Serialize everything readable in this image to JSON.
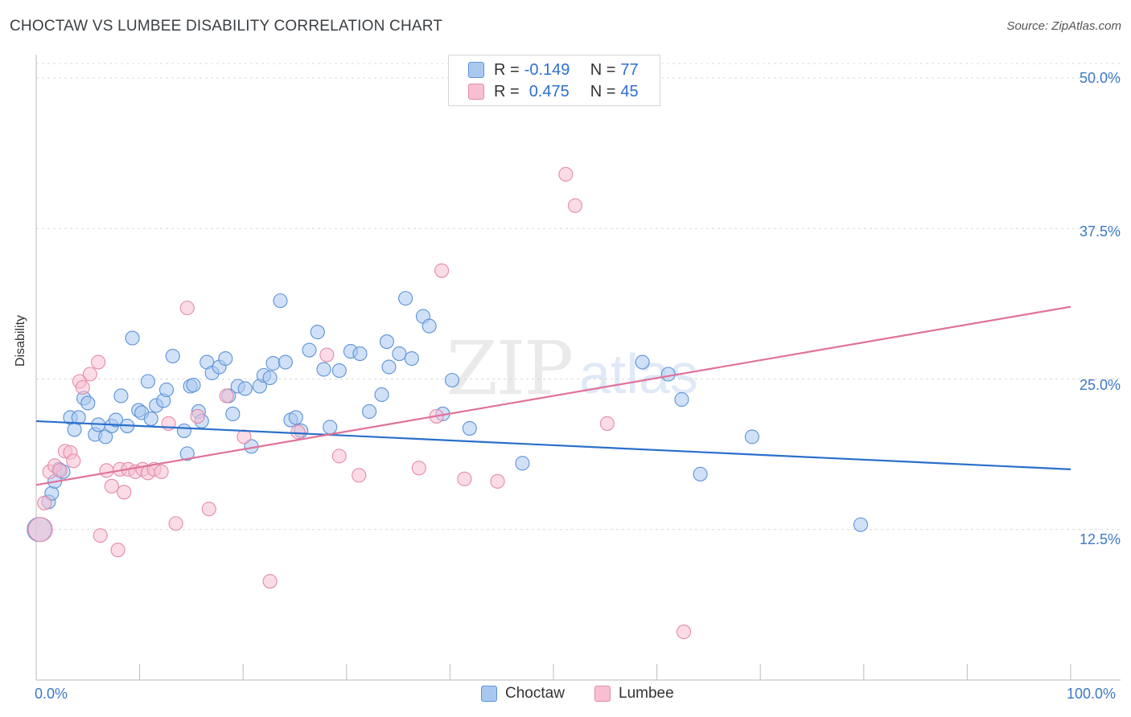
{
  "header": {
    "title": "CHOCTAW VS LUMBEE DISABILITY CORRELATION CHART",
    "source": "Source: ZipAtlas.com"
  },
  "legend": {
    "choctaw": {
      "r_label": "R = ",
      "r_value": "-0.149",
      "n_label": "N = ",
      "n_value": "77"
    },
    "lumbee": {
      "r_label": "R = ",
      "r_value": "0.475",
      "n_label": "N = ",
      "n_value": "45"
    }
  },
  "bottom_legend": {
    "choctaw": "Choctaw",
    "lumbee": "Lumbee"
  },
  "watermark": {
    "zip": "ZIP",
    "atlas": "atlas"
  },
  "colors": {
    "choctaw_fill": "#a9c8f0",
    "choctaw_stroke": "#5b92d8",
    "choctaw_line": "#2a6fcb",
    "lumbee_fill": "#f7bfd2",
    "lumbee_stroke": "#e48aab",
    "lumbee_line": "#e0729a",
    "tick_text": "#3b78c8"
  },
  "chart_data": {
    "type": "scatter",
    "title": "CHOCTAW VS LUMBEE DISABILITY CORRELATION CHART",
    "xlabel": "",
    "ylabel": "Disability",
    "xlim": [
      0,
      100
    ],
    "ylim": [
      0,
      50
    ],
    "x_tick_labels": [
      "0.0%",
      "100.0%"
    ],
    "y_ticks": [
      12.5,
      25.0,
      37.5,
      50.0
    ],
    "y_tick_labels": [
      "12.5%",
      "25.0%",
      "37.5%",
      "50.0%"
    ],
    "grid": "horizontal dashed",
    "series": [
      {
        "name": "Choctaw",
        "r": -0.149,
        "n": 77,
        "trend": {
          "x": [
            0,
            100
          ],
          "y": [
            21.5,
            17.5
          ]
        },
        "points": [
          [
            0.3,
            12.5
          ],
          [
            1.2,
            14.8
          ],
          [
            1.5,
            15.5
          ],
          [
            1.8,
            16.5
          ],
          [
            2.2,
            17.5
          ],
          [
            2.6,
            17.3
          ],
          [
            3.3,
            21.8
          ],
          [
            3.7,
            20.8
          ],
          [
            4.1,
            21.8
          ],
          [
            4.6,
            23.4
          ],
          [
            5.0,
            23.0
          ],
          [
            5.7,
            20.4
          ],
          [
            6.0,
            21.2
          ],
          [
            6.7,
            20.2
          ],
          [
            7.3,
            21.1
          ],
          [
            7.7,
            21.6
          ],
          [
            8.2,
            23.6
          ],
          [
            8.8,
            21.1
          ],
          [
            9.3,
            28.4
          ],
          [
            9.9,
            22.4
          ],
          [
            10.2,
            22.2
          ],
          [
            10.8,
            24.8
          ],
          [
            11.1,
            21.7
          ],
          [
            11.6,
            22.8
          ],
          [
            12.3,
            23.2
          ],
          [
            12.6,
            24.1
          ],
          [
            13.2,
            26.9
          ],
          [
            14.3,
            20.7
          ],
          [
            14.6,
            18.8
          ],
          [
            14.9,
            24.4
          ],
          [
            15.2,
            24.5
          ],
          [
            15.7,
            22.3
          ],
          [
            16.0,
            21.5
          ],
          [
            16.5,
            26.4
          ],
          [
            17.0,
            25.5
          ],
          [
            17.7,
            26.0
          ],
          [
            18.3,
            26.7
          ],
          [
            18.6,
            23.6
          ],
          [
            19.0,
            22.1
          ],
          [
            19.5,
            24.4
          ],
          [
            20.2,
            24.2
          ],
          [
            20.8,
            19.4
          ],
          [
            21.6,
            24.4
          ],
          [
            22.0,
            25.3
          ],
          [
            22.6,
            25.1
          ],
          [
            22.9,
            26.3
          ],
          [
            23.6,
            31.5
          ],
          [
            24.1,
            26.4
          ],
          [
            24.6,
            21.6
          ],
          [
            25.1,
            21.8
          ],
          [
            25.6,
            20.7
          ],
          [
            26.4,
            27.4
          ],
          [
            27.2,
            28.9
          ],
          [
            27.8,
            25.8
          ],
          [
            28.4,
            21.0
          ],
          [
            29.3,
            25.7
          ],
          [
            30.4,
            27.3
          ],
          [
            31.3,
            27.1
          ],
          [
            32.2,
            22.3
          ],
          [
            33.4,
            23.7
          ],
          [
            33.9,
            28.1
          ],
          [
            34.1,
            26.0
          ],
          [
            35.1,
            27.1
          ],
          [
            35.7,
            31.7
          ],
          [
            36.3,
            26.7
          ],
          [
            37.4,
            30.2
          ],
          [
            38.0,
            29.4
          ],
          [
            39.3,
            22.1
          ],
          [
            40.2,
            24.9
          ],
          [
            41.9,
            20.9
          ],
          [
            47.0,
            18.0
          ],
          [
            58.6,
            26.4
          ],
          [
            61.1,
            25.4
          ],
          [
            62.4,
            23.3
          ],
          [
            64.2,
            17.1
          ],
          [
            69.2,
            20.2
          ],
          [
            79.7,
            12.9
          ]
        ]
      },
      {
        "name": "Lumbee",
        "r": 0.475,
        "n": 45,
        "trend": {
          "x": [
            0,
            100
          ],
          "y": [
            16.2,
            31.0
          ]
        },
        "points": [
          [
            0.4,
            12.5
          ],
          [
            0.8,
            14.7
          ],
          [
            1.3,
            17.3
          ],
          [
            1.8,
            17.8
          ],
          [
            2.3,
            17.4
          ],
          [
            2.8,
            19.0
          ],
          [
            3.3,
            18.9
          ],
          [
            3.6,
            18.2
          ],
          [
            4.2,
            24.8
          ],
          [
            4.5,
            24.3
          ],
          [
            5.2,
            25.4
          ],
          [
            6.0,
            26.4
          ],
          [
            6.2,
            12.0
          ],
          [
            6.8,
            17.4
          ],
          [
            7.3,
            16.1
          ],
          [
            7.9,
            10.8
          ],
          [
            8.1,
            17.5
          ],
          [
            8.5,
            15.6
          ],
          [
            8.9,
            17.5
          ],
          [
            9.6,
            17.3
          ],
          [
            10.3,
            17.5
          ],
          [
            10.8,
            17.2
          ],
          [
            11.4,
            17.5
          ],
          [
            12.1,
            17.3
          ],
          [
            12.8,
            21.3
          ],
          [
            13.5,
            13.0
          ],
          [
            14.6,
            30.9
          ],
          [
            15.6,
            21.9
          ],
          [
            16.7,
            14.2
          ],
          [
            18.4,
            23.6
          ],
          [
            20.1,
            20.2
          ],
          [
            22.6,
            8.2
          ],
          [
            25.3,
            20.6
          ],
          [
            28.1,
            27.0
          ],
          [
            29.3,
            18.6
          ],
          [
            31.2,
            17.0
          ],
          [
            37.0,
            17.6
          ],
          [
            38.7,
            21.9
          ],
          [
            39.2,
            34.0
          ],
          [
            41.4,
            16.7
          ],
          [
            44.6,
            16.5
          ],
          [
            51.2,
            42.0
          ],
          [
            52.1,
            39.4
          ],
          [
            55.2,
            21.3
          ],
          [
            62.6,
            4.0
          ]
        ]
      }
    ]
  }
}
